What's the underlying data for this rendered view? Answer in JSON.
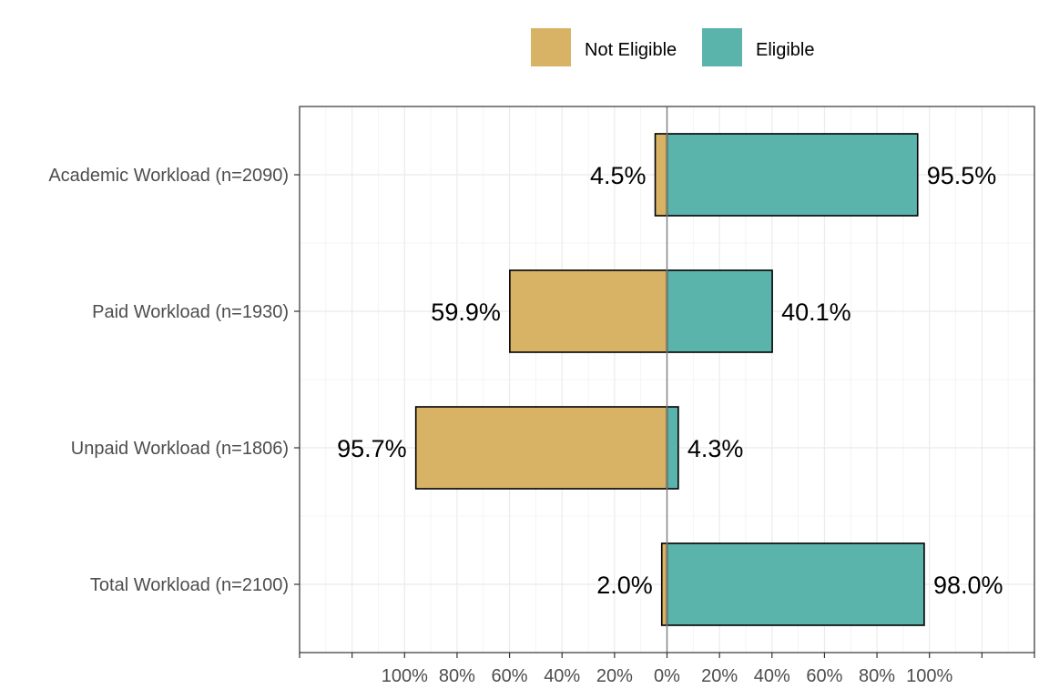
{
  "chart_data": {
    "type": "bar",
    "orientation": "horizontal-diverging",
    "title": "",
    "xlabel": "",
    "ylabel": "",
    "xlim": [
      -140,
      140
    ],
    "grid": true,
    "legend_position": "top",
    "categories": [
      "Academic Workload (n=2090)",
      "Paid Workload (n=1930)",
      "Unpaid Workload (n=1806)",
      "Total Workload (n=2100)"
    ],
    "series": [
      {
        "name": "Not Eligible",
        "color": "#D8B365",
        "direction": "left",
        "values": [
          4.5,
          59.9,
          95.7,
          2.0
        ],
        "labels": [
          "4.5%",
          "59.9%",
          "95.7%",
          "2.0%"
        ]
      },
      {
        "name": "Eligible",
        "color": "#5AB4AC",
        "direction": "right",
        "values": [
          95.5,
          40.1,
          4.3,
          98.0
        ],
        "labels": [
          "95.5%",
          "40.1%",
          "4.3%",
          "98.0%"
        ]
      }
    ],
    "x_ticks": [
      {
        "value": -100,
        "label": "100%"
      },
      {
        "value": -80,
        "label": "80%"
      },
      {
        "value": -60,
        "label": "60%"
      },
      {
        "value": -40,
        "label": "40%"
      },
      {
        "value": -20,
        "label": "20%"
      },
      {
        "value": 0,
        "label": "0%"
      },
      {
        "value": 20,
        "label": "20%"
      },
      {
        "value": 40,
        "label": "40%"
      },
      {
        "value": 60,
        "label": "60%"
      },
      {
        "value": 80,
        "label": "80%"
      },
      {
        "value": 100,
        "label": "100%"
      }
    ]
  }
}
